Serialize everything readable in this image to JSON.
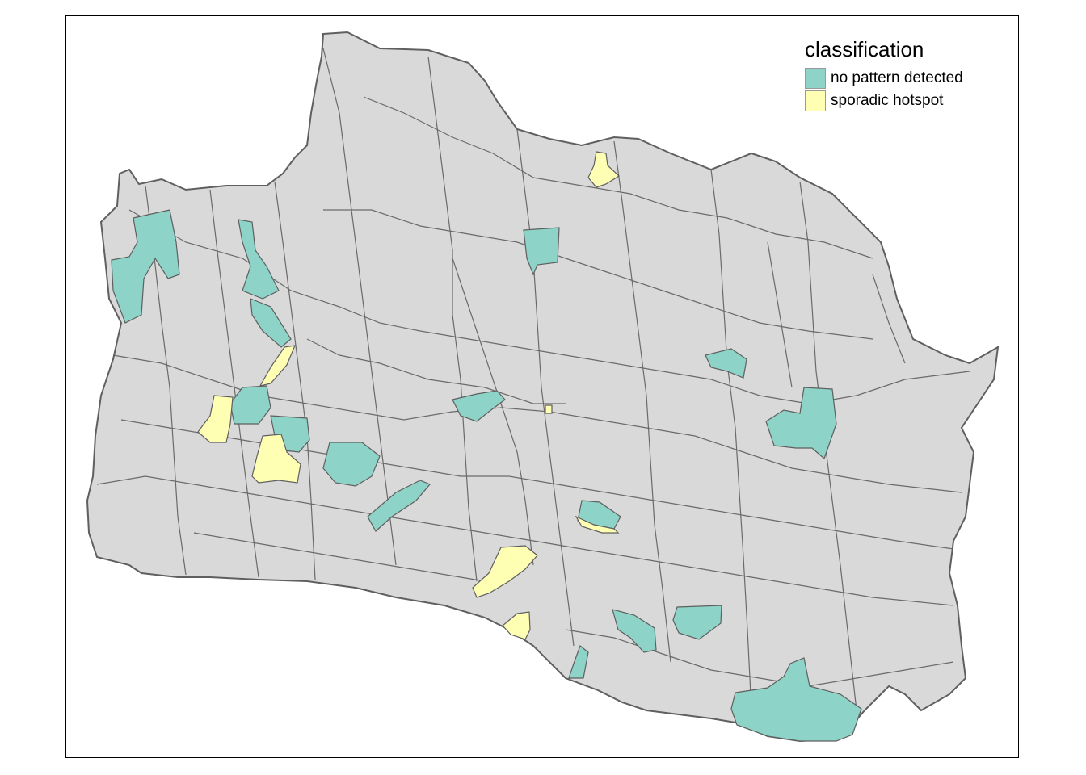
{
  "legend": {
    "title": "classification",
    "items": [
      {
        "label": "no pattern detected",
        "color": "#8dd3c7"
      },
      {
        "label": "sporadic hotspot",
        "color": "#ffffb3"
      }
    ]
  },
  "colors": {
    "land": "#d9d9d9",
    "border": "#5f5f5f",
    "no_pattern": "#8dd3c7",
    "sporadic": "#ffffb3"
  }
}
